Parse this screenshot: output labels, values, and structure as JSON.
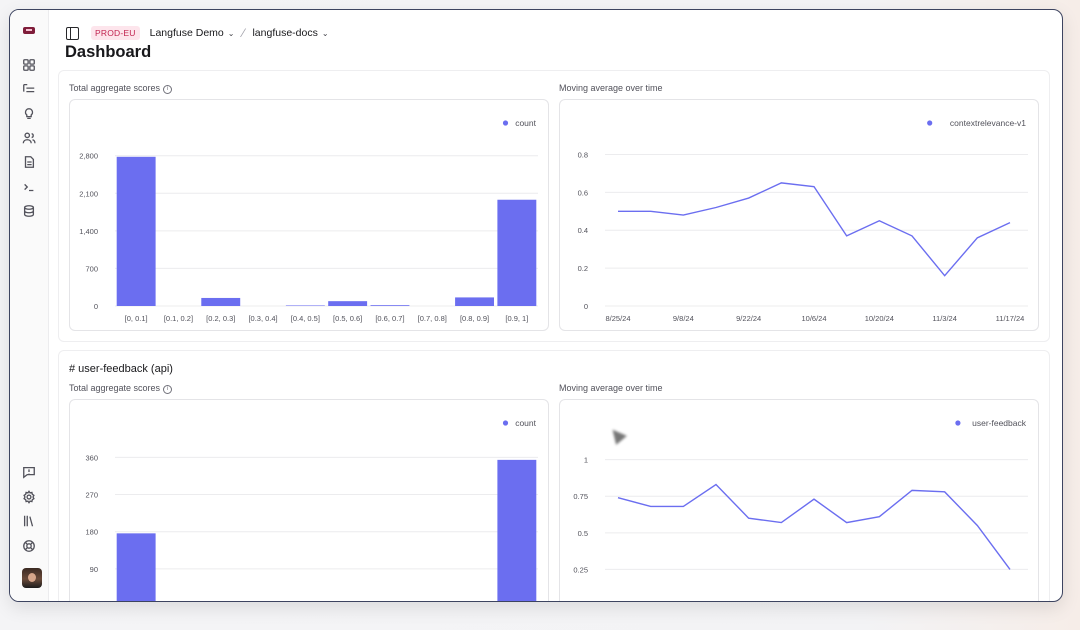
{
  "colors": {
    "accent": "#6b6ef0",
    "env_bg": "#fde5ec",
    "env_fg": "#c1224f"
  },
  "sidebar": {
    "icons": [
      "logo",
      "dashboard-icon",
      "traces-icon",
      "lightbulb-icon",
      "users-icon",
      "prompts-icon",
      "terminal-icon",
      "database-icon",
      "feedback-icon",
      "settings-icon",
      "library-icon",
      "support-icon",
      "avatar"
    ]
  },
  "topbar": {
    "env_badge": "PROD-EU",
    "org": "Langfuse Demo",
    "project": "langfuse-docs"
  },
  "page": {
    "title": "Dashboard"
  },
  "sections": [
    {
      "title": "",
      "left_label": "Total aggregate scores",
      "right_label": "Moving average over time"
    },
    {
      "title": "# user-feedback (api)",
      "left_label": "Total aggregate scores",
      "right_label": "Moving average over time"
    }
  ],
  "chart_data": [
    {
      "type": "bar",
      "legend": "count",
      "categories": [
        "[0, 0.1]",
        "[0.1, 0.2]",
        "[0.2, 0.3]",
        "[0.3, 0.4]",
        "[0.4, 0.5]",
        "[0.5, 0.6]",
        "[0.6, 0.7]",
        "[0.7, 0.8]",
        "[0.8, 0.9]",
        "[0.9, 1]"
      ],
      "values": [
        2780,
        0,
        150,
        0,
        10,
        90,
        15,
        0,
        160,
        1980
      ],
      "yticks": [
        0,
        700,
        1400,
        2100,
        2800
      ],
      "ytick_labels": [
        "0",
        "700",
        "1,400",
        "2,100",
        "2,800"
      ],
      "ylim": [
        0,
        3000
      ]
    },
    {
      "type": "line",
      "legend": "contextrelevance-v1",
      "x": [
        "8/25/24",
        "9/1/24",
        "9/8/24",
        "9/15/24",
        "9/22/24",
        "9/29/24",
        "10/6/24",
        "10/13/24",
        "10/20/24",
        "10/27/24",
        "11/3/24",
        "11/10/24",
        "11/17/24"
      ],
      "values": [
        0.5,
        0.5,
        0.48,
        0.52,
        0.57,
        0.65,
        0.63,
        0.37,
        0.45,
        0.37,
        0.16,
        0.36,
        0.44
      ],
      "xtick_labels": [
        "8/25/24",
        "9/8/24",
        "9/22/24",
        "10/6/24",
        "10/20/24",
        "11/3/24",
        "11/17/24"
      ],
      "yticks": [
        0,
        0.2,
        0.4,
        0.6,
        0.8
      ],
      "ytick_labels": [
        "0",
        "0.2",
        "0.4",
        "0.6",
        "0.8"
      ],
      "ylim": [
        0,
        0.85
      ]
    },
    {
      "type": "bar",
      "legend": "count",
      "categories": [
        "[0, 0.1]",
        "[0.1, 0.2]",
        "[0.2, 0.3]",
        "[0.3, 0.4]",
        "[0.4, 0.5]",
        "[0.5, 0.6]",
        "[0.6, 0.7]",
        "[0.7, 0.8]",
        "[0.8, 0.9]",
        "[0.9, 1]"
      ],
      "values": [
        176,
        0,
        0,
        0,
        0,
        0,
        0,
        0,
        0,
        354
      ],
      "yticks": [
        90,
        180,
        270,
        360
      ],
      "ytick_labels": [
        "90",
        "180",
        "270",
        "360"
      ],
      "ylim": [
        0,
        390
      ]
    },
    {
      "type": "line",
      "legend": "user-feedback",
      "x": [
        "8/25/24",
        "9/1/24",
        "9/8/24",
        "9/15/24",
        "9/22/24",
        "9/29/24",
        "10/6/24",
        "10/13/24",
        "10/20/24",
        "10/27/24",
        "11/3/24",
        "11/10/24",
        "11/17/24"
      ],
      "values": [
        0.74,
        0.68,
        0.68,
        0.83,
        0.6,
        0.57,
        0.73,
        0.57,
        0.61,
        0.79,
        0.78,
        0.55,
        0.25
      ],
      "yticks": [
        0.25,
        0.5,
        0.75,
        1
      ],
      "ytick_labels": [
        "0.25",
        "0.5",
        "0.75",
        "1"
      ],
      "ylim": [
        0,
        1.1
      ]
    }
  ]
}
